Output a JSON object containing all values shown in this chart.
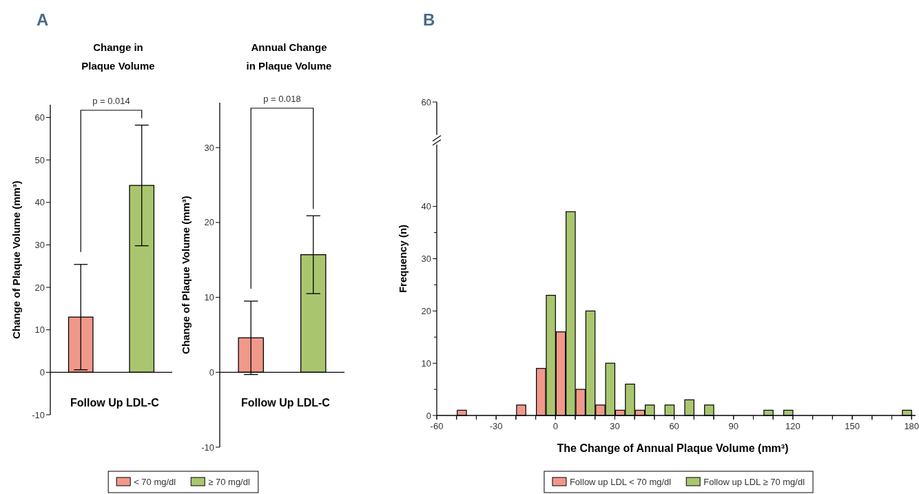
{
  "chart_data": [
    {
      "type": "bar",
      "title": "Change in Plaque Volume",
      "xlabel": "Follow Up LDL-C",
      "ylabel": "Change of Plaque Volume (mm³)",
      "categories": [
        null
      ],
      "series": [
        {
          "name": "< 70 mg/dl",
          "color": "#f0998a",
          "values": [
            13
          ],
          "errors": [
            12.4
          ]
        },
        {
          "name": "≥ 70 mg/dl",
          "color": "#a9c66e",
          "values": [
            44
          ],
          "errors": [
            14.2
          ]
        }
      ],
      "ylim": [
        -10,
        63
      ],
      "yticks": [
        -10,
        0,
        10,
        20,
        30,
        40,
        50,
        60
      ],
      "legend": "bottom",
      "annotations": [
        "A",
        "p = 0.014"
      ]
    },
    {
      "type": "bar",
      "title": "Annual Change in Plaque Volume",
      "xlabel": "Follow Up LDL-C",
      "ylabel": "Change of Plaque Volume (mm³)",
      "categories": [
        null
      ],
      "series": [
        {
          "color": "#f0998a",
          "values": [
            4.6
          ],
          "errors": [
            4.9
          ]
        },
        {
          "color": "#a9c66e",
          "values": [
            15.7
          ],
          "errors": [
            5.2
          ]
        }
      ],
      "ylim": [
        -10,
        36
      ],
      "yticks": [
        -10,
        0,
        10,
        20,
        30
      ],
      "annotations": [
        "p = 0.018"
      ]
    },
    {
      "type": "histogram",
      "xlabel": "The Change of Annual Plaque Volume (mm³)",
      "ylabel": "Frequency (n)",
      "bins": [
        -60,
        -50,
        -40,
        -30,
        -20,
        -10,
        0,
        10,
        20,
        30,
        40,
        50,
        60,
        70,
        80,
        90,
        100,
        110,
        120,
        130,
        140,
        150,
        160,
        170,
        180
      ],
      "series": [
        {
          "name": "Follow up LDL < 70 mg/dl",
          "color": "#f0998a",
          "values": [
            0,
            1,
            0,
            0,
            2,
            9,
            16,
            5,
            2,
            1,
            1,
            0,
            0,
            0,
            0,
            0,
            0,
            0,
            0,
            0,
            0,
            0,
            0,
            0
          ]
        },
        {
          "name": "Follow up LDL ≥ 70 mg/dl",
          "color": "#a9c66e",
          "values": [
            0,
            0,
            0,
            0,
            0,
            23,
            39,
            20,
            10,
            6,
            2,
            2,
            3,
            2,
            0,
            0,
            1,
            1,
            0,
            0,
            0,
            0,
            0,
            1
          ]
        }
      ],
      "xlim": [
        -60,
        182
      ],
      "xticks": [
        -60,
        {
          "value": -50,
          "label": null
        },
        {
          "value": -40,
          "label": null
        },
        -30,
        {
          "value": -20,
          "label": null
        },
        {
          "value": -10,
          "label": null
        },
        0,
        {
          "value": 10,
          "label": null
        },
        {
          "value": 20,
          "label": null
        },
        30,
        {
          "value": 40,
          "label": null
        },
        {
          "value": 50,
          "label": null
        },
        60,
        {
          "value": 70,
          "label": null
        },
        {
          "value": 80,
          "label": null
        },
        90,
        {
          "value": 100,
          "label": null
        },
        {
          "value": 110,
          "label": null
        },
        120,
        {
          "value": 130,
          "label": null
        },
        {
          "value": 140,
          "label": null
        },
        150,
        {
          "value": 160,
          "label": null
        },
        {
          "value": 170,
          "label": null
        },
        180
      ],
      "ylim": [
        0,
        60
      ],
      "yticks": [
        0,
        {
          "value": 5,
          "label": null
        },
        10,
        {
          "value": 15,
          "label": null
        },
        20,
        {
          "value": 25,
          "label": null
        },
        30,
        {
          "value": 35,
          "label": null
        },
        40,
        60
      ],
      "legend": "bottom",
      "annotations": [
        "B"
      ]
    }
  ]
}
